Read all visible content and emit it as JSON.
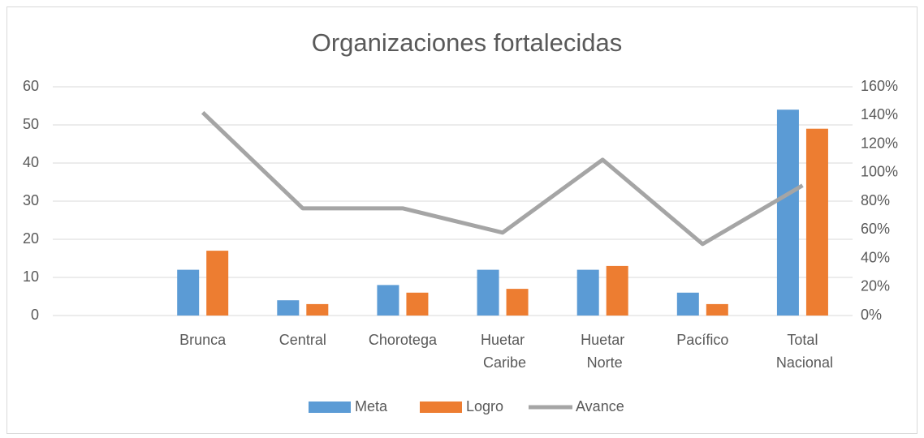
{
  "chart_data": {
    "type": "bar",
    "title": "Organizaciones fortalecidas",
    "categories": [
      null,
      "Brunca",
      "Central",
      "Chorotega",
      "Huetar Caribe",
      "Huetar Norte",
      "Pacífico",
      "Total Nacional"
    ],
    "series": [
      {
        "name": "Meta",
        "color": "#5b9bd5",
        "values": [
          null,
          12,
          4,
          8,
          12,
          12,
          6,
          54
        ]
      },
      {
        "name": "Logro",
        "color": "#ed7d31",
        "values": [
          null,
          17,
          3,
          6,
          7,
          13,
          3,
          49
        ]
      },
      {
        "name": "Avance",
        "color": "#a5a5a5",
        "type": "line",
        "axis": "y2",
        "values": [
          null,
          142,
          75,
          75,
          58,
          109,
          50,
          91
        ]
      }
    ],
    "ylim": [
      0,
      60
    ],
    "yticks": [
      0,
      10,
      20,
      30,
      40,
      50,
      60
    ],
    "y2lim": [
      0,
      160
    ],
    "y2ticks": [
      {
        "value": 0,
        "label": "0%"
      },
      {
        "value": 20,
        "label": "20%"
      },
      {
        "value": 40,
        "label": "40%"
      },
      {
        "value": 60,
        "label": "60%"
      },
      {
        "value": 80,
        "label": "80%"
      },
      {
        "value": 100,
        "label": "100%"
      },
      {
        "value": 120,
        "label": "120%"
      },
      {
        "value": 140,
        "label": "140%"
      },
      {
        "value": 160,
        "label": "160%"
      }
    ],
    "grid": true,
    "legend": "bottom"
  }
}
